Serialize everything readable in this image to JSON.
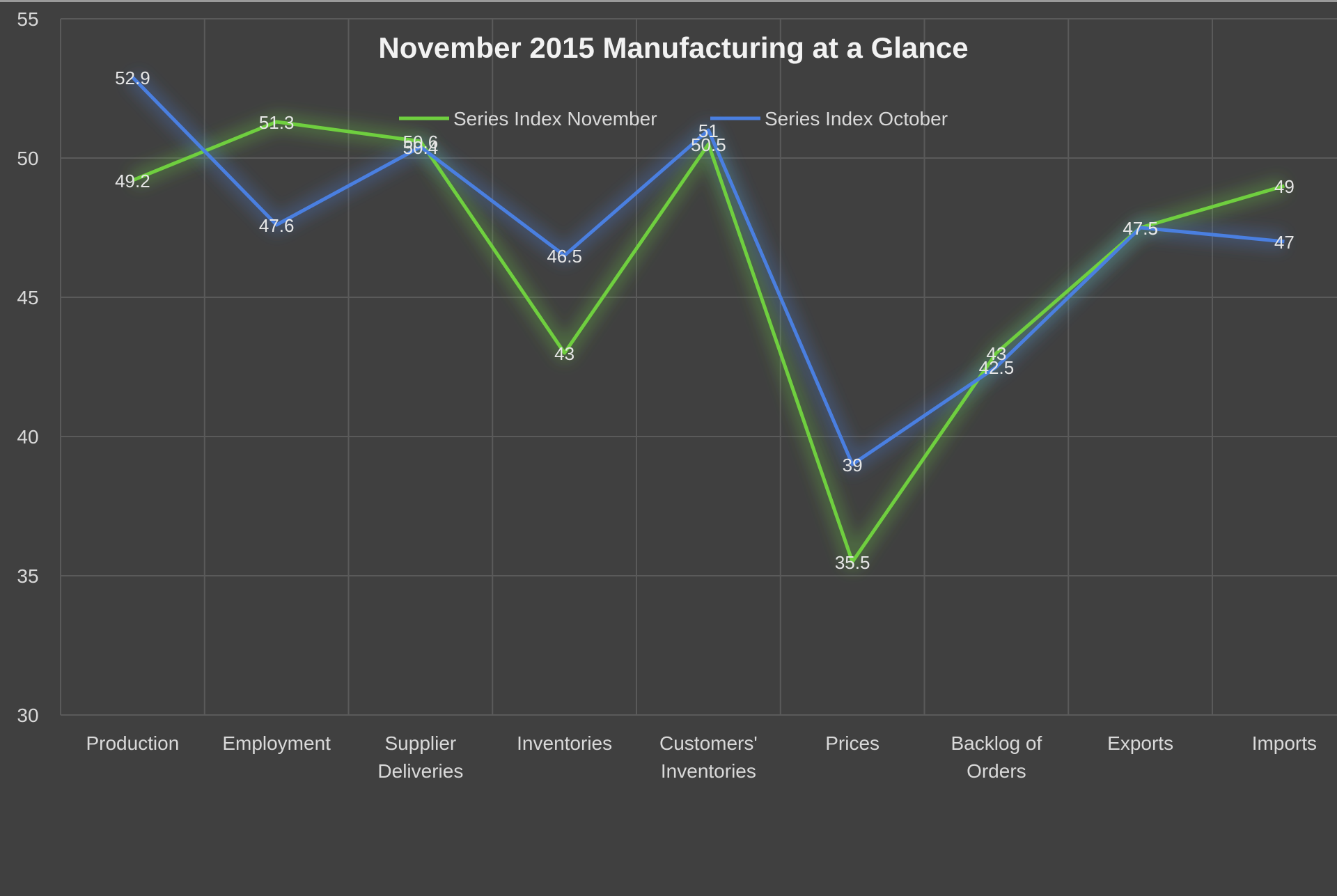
{
  "chart_data": {
    "type": "line",
    "title": "November 2015 Manufacturing at a Glance",
    "xlabel": "",
    "ylabel": "",
    "ylim": [
      30,
      55
    ],
    "yticks": [
      30,
      35,
      40,
      45,
      50,
      55
    ],
    "grid": true,
    "legend_position": "top",
    "categories": [
      "Production",
      "Employment",
      "Supplier Deliveries",
      "Inventories",
      "Customers' Inventories",
      "Prices",
      "Backlog of Orders",
      "Exports",
      "Imports"
    ],
    "category_lines": [
      [
        "Production"
      ],
      [
        "Employment"
      ],
      [
        "Supplier",
        "Deliveries"
      ],
      [
        "Inventories"
      ],
      [
        "Customers'",
        "Inventories"
      ],
      [
        "Prices"
      ],
      [
        "Backlog of",
        "Orders"
      ],
      [
        "Exports"
      ],
      [
        "Imports"
      ]
    ],
    "series": [
      {
        "name": "Series Index November",
        "color": "#6fcf3f",
        "values": [
          49.2,
          51.3,
          50.6,
          43,
          50.5,
          35.5,
          43,
          47.5,
          49
        ]
      },
      {
        "name": "Series Index October",
        "color": "#4a7fe0",
        "values": [
          52.9,
          47.6,
          50.4,
          46.5,
          51,
          39,
          42.5,
          47.5,
          47
        ]
      }
    ]
  },
  "colors": {
    "background": "#404040",
    "grid": "#5a5a5a",
    "text": "#d9d9d9"
  }
}
